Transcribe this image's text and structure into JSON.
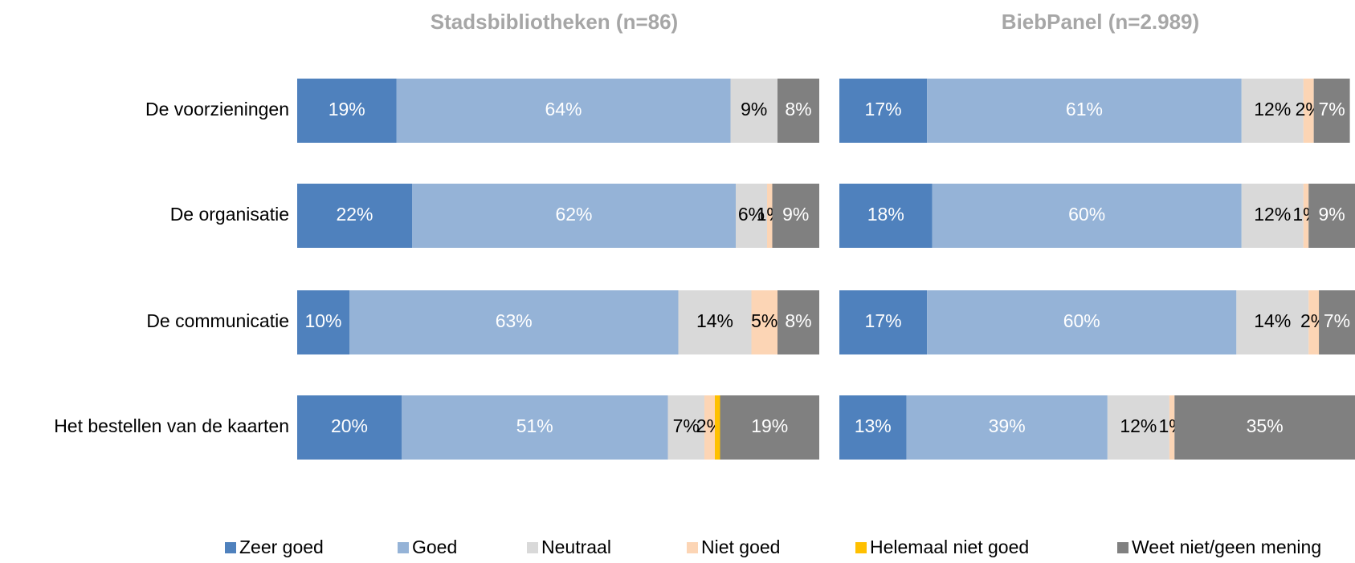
{
  "chart_data": [
    {
      "type": "bar",
      "title": "Stadsbibliotheken (n=86)",
      "categories": [
        "De voorzieningen",
        "De organisatie",
        "De communicatie",
        "Het bestellen van de kaarten"
      ],
      "xlim": [
        0,
        100
      ],
      "series": [
        {
          "name": "Zeer goed",
          "color": "#4f81bd",
          "values": [
            19,
            22,
            10,
            20
          ],
          "value_labels": [
            "19%",
            "22%",
            "10%",
            "20%"
          ]
        },
        {
          "name": "Goed",
          "color": "#95b3d7",
          "values": [
            64,
            62,
            63,
            51
          ],
          "value_labels": [
            "64%",
            "62%",
            "63%",
            "51%"
          ]
        },
        {
          "name": "Neutraal",
          "color": "#d9d9d9",
          "values": [
            9,
            6,
            14,
            7
          ],
          "value_labels": [
            "9%",
            "6%",
            "14%",
            "7%"
          ]
        },
        {
          "name": "Niet goed",
          "color": "#fcd5b5",
          "values": [
            0,
            1,
            5,
            2
          ],
          "value_labels": [
            null,
            "1%",
            "5%",
            "2%"
          ]
        },
        {
          "name": "Helemaal niet goed",
          "color": "#ffc000",
          "values": [
            0,
            0,
            0,
            1
          ],
          "value_labels": [
            null,
            null,
            null,
            null
          ]
        },
        {
          "name": "Weet niet/geen mening",
          "color": "#808080",
          "values": [
            8,
            9,
            8,
            19
          ],
          "value_labels": [
            "8%",
            "9%",
            "8%",
            "19%"
          ]
        }
      ]
    },
    {
      "type": "bar",
      "title": "BiebPanel (n=2.989)",
      "xlim": [
        0,
        100
      ],
      "series": [
        {
          "values": [
            17,
            18,
            17,
            13
          ],
          "value_labels": [
            "17%",
            "18%",
            "17%",
            "13%"
          ]
        },
        {
          "values": [
            61,
            60,
            60,
            39
          ],
          "value_labels": [
            "61%",
            "60%",
            "60%",
            "39%"
          ]
        },
        {
          "values": [
            12,
            12,
            14,
            12
          ],
          "value_labels": [
            "12%",
            "12%",
            "14%",
            "12%"
          ]
        },
        {
          "values": [
            2,
            1,
            2,
            1
          ],
          "value_labels": [
            "2%",
            "1%",
            "2%",
            "1%"
          ]
        },
        {
          "values": [
            0,
            0,
            0,
            0
          ],
          "value_labels": [
            null,
            null,
            null,
            null
          ]
        },
        {
          "values": [
            7,
            9,
            7,
            35
          ],
          "value_labels": [
            "7%",
            "9%",
            "7%",
            "35%"
          ]
        }
      ]
    }
  ]
}
